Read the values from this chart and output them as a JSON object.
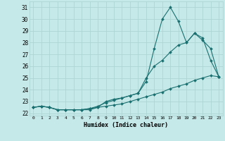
{
  "xlabel": "Humidex (Indice chaleur)",
  "ylabel": "",
  "xlim": [
    -0.5,
    23.5
  ],
  "ylim": [
    21.8,
    31.5
  ],
  "yticks": [
    22,
    23,
    24,
    25,
    26,
    27,
    28,
    29,
    30,
    31
  ],
  "xticks": [
    0,
    1,
    2,
    3,
    4,
    5,
    6,
    7,
    8,
    9,
    10,
    11,
    12,
    13,
    14,
    15,
    16,
    17,
    18,
    19,
    20,
    21,
    22,
    23
  ],
  "bg_color": "#c5e8e8",
  "grid_color": "#aed4d4",
  "line_color": "#1a7070",
  "line1_y": [
    22.5,
    22.6,
    22.5,
    22.3,
    22.3,
    22.3,
    22.3,
    22.3,
    22.5,
    23.0,
    23.2,
    23.3,
    23.5,
    23.7,
    24.7,
    27.5,
    30.0,
    31.0,
    29.8,
    28.0,
    28.8,
    28.4,
    26.5,
    25.1
  ],
  "line2_y": [
    22.5,
    22.6,
    22.5,
    22.3,
    22.3,
    22.3,
    22.3,
    22.4,
    22.6,
    22.9,
    23.1,
    23.3,
    23.5,
    23.7,
    25.0,
    26.0,
    26.5,
    27.2,
    27.8,
    28.0,
    28.8,
    28.2,
    27.5,
    25.1
  ],
  "line3_y": [
    22.5,
    22.6,
    22.5,
    22.3,
    22.3,
    22.3,
    22.3,
    22.4,
    22.5,
    22.6,
    22.7,
    22.8,
    23.0,
    23.2,
    23.4,
    23.6,
    23.8,
    24.1,
    24.3,
    24.5,
    24.8,
    25.0,
    25.2,
    25.1
  ]
}
